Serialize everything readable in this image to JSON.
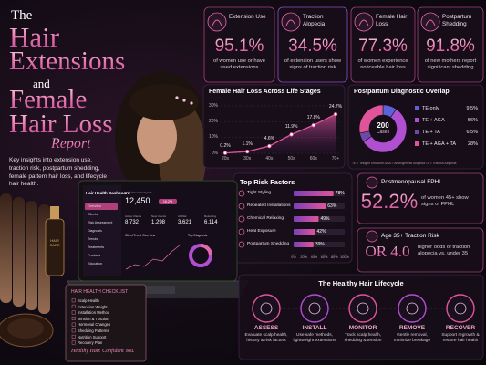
{
  "header": {
    "title_lines": [
      "The",
      "Hair",
      "Extensions",
      "and",
      "Female",
      "Hair Loss",
      "Report"
    ],
    "description": "Key insights into extension use, traction risk, postpartum shedding, female pattern hair loss, and lifecycle hair health."
  },
  "stats": [
    {
      "label": "Extension Use",
      "value": "95.1%",
      "caption": "of women use or have used extensions"
    },
    {
      "label": "Traction Alopecia",
      "value": "34.5%",
      "caption": "of extension users show signs of traction risk"
    },
    {
      "label": "Female Hair Loss",
      "value": "77.3%",
      "caption": "of women experience noticeable hair loss"
    },
    {
      "label": "Postpartum Shedding",
      "value": "91.8%",
      "caption": "of new mothers report significant shedding"
    }
  ],
  "chart_data": [
    {
      "type": "line",
      "title": "Female Hair Loss Across Life Stages",
      "categories": [
        "20s",
        "30s",
        "40s",
        "50s",
        "60s",
        "70+"
      ],
      "values": [
        0.2,
        1.1,
        4.6,
        11.9,
        17.8,
        24.7
      ],
      "value_labels": [
        "0.2%",
        "1.1%",
        "4.6%",
        "11.9%",
        "17.8%",
        "24.7%"
      ],
      "color": "#e0559a",
      "ylim": [
        0,
        30
      ],
      "yticks": [
        {
          "value": 0,
          "label": "0%"
        },
        {
          "value": 10,
          "label": "10%"
        },
        {
          "value": 20,
          "label": "20%"
        },
        {
          "value": 30,
          "label": "30%"
        }
      ],
      "grid": true
    },
    {
      "type": "pie",
      "title": "Postpartum Diagnostic Overlap",
      "center_value": 200,
      "center_label": "Cases",
      "categories": [
        "TE only",
        "TE + AGA",
        "TE + TA",
        "TE + AGA + TA"
      ],
      "values": [
        9.5,
        56,
        6.5,
        28
      ],
      "value_labels": [
        "9.5%",
        "56%",
        "6.5%",
        "28%"
      ],
      "colors": [
        "#5a63d8",
        "#b04fd0",
        "#6b4aa8",
        "#e0559a"
      ],
      "note": "TE = Telogen Effluvium   AGA = Androgenetic Alopecia   TA = Traction Alopecia"
    },
    {
      "type": "bar",
      "orientation": "horizontal",
      "title": "Top Risk Factors",
      "categories": [
        "Tight Styling",
        "Repeated Installations",
        "Chemical Relaxing",
        "Heat Exposure",
        "Postpartum Shedding"
      ],
      "values": [
        78,
        63,
        49,
        42,
        39
      ],
      "value_labels": [
        "78%",
        "63%",
        "49%",
        "42%",
        "39%"
      ],
      "color": "#b04fd0",
      "xlim": [
        0,
        100
      ],
      "xticks": [
        {
          "value": 0,
          "label": "0%"
        },
        {
          "value": 20,
          "label": "20%"
        },
        {
          "value": 40,
          "label": "40%"
        },
        {
          "value": 60,
          "label": "60%"
        },
        {
          "value": 80,
          "label": "80%"
        },
        {
          "value": 100,
          "label": "100%"
        }
      ]
    }
  ],
  "highlights": [
    {
      "label": "Postmenopausal FPHL",
      "value": "52.2%",
      "caption": "of women 45+ show signs of FPHL"
    },
    {
      "label": "Age 35+ Traction Risk",
      "value": "OR 4.0",
      "caption": "higher odds of traction alopecia vs. under 35"
    }
  ],
  "lifecycle": {
    "title": "The Healthy Hair Lifecycle",
    "steps": [
      {
        "name": "ASSESS",
        "text": "Evaluate scalp health, history & risk factors"
      },
      {
        "name": "INSTALL",
        "text": "Use safe methods, lightweight extensions"
      },
      {
        "name": "MONITOR",
        "text": "Track scalp health, shedding & tension"
      },
      {
        "name": "REMOVE",
        "text": "Gentle removal, minimize breakage"
      },
      {
        "name": "RECOVER",
        "text": "Support regrowth & restore hair health"
      }
    ]
  },
  "dashboard": {
    "title": "Hair Health Dashboard",
    "menu": [
      "Overview",
      "Clients",
      "Risk Assessment",
      "Diagnosis",
      "Trends",
      "Treatments",
      "Products",
      "Education"
    ],
    "kpis": [
      {
        "label": "Total Clients Analyzed",
        "value": "12,450"
      },
      {
        "label": "Active Clients",
        "value": "8,732"
      },
      {
        "label": "New Clients",
        "value": "1,298"
      },
      {
        "label": "At Risk",
        "value": "3,621"
      },
      {
        "label": "Returning",
        "value": "6,114"
      }
    ],
    "badge": "18.2%",
    "panels": [
      "Client Trend Overview",
      "Top Diagnosis"
    ]
  },
  "checklist": {
    "title": "HAIR HEALTH CHECKLIST",
    "items": [
      "Scalp Health",
      "Extension Weight",
      "Installation Method",
      "Tension & Traction",
      "Hormonal Changes",
      "Shedding Patterns",
      "Nutrition Support",
      "Recovery Plan"
    ],
    "tagline": "Healthy Hair. Confident You."
  },
  "product_label": "HAIR CARE"
}
